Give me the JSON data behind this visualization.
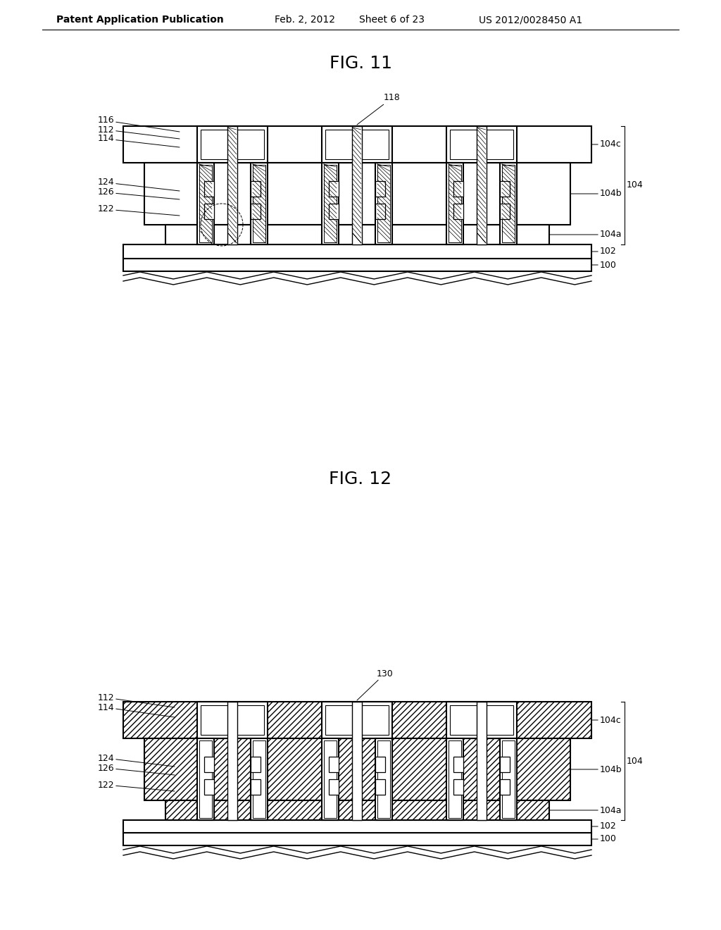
{
  "bg_color": "#ffffff",
  "header_text": "Patent Application Publication",
  "header_date": "Feb. 2, 2012",
  "header_sheet": "Sheet 6 of 23",
  "header_patent": "US 2012/0028450 A1",
  "fig11_title": "FIG. 11",
  "fig12_title": "FIG. 12",
  "lw_border": 1.5,
  "lw_inner": 0.8,
  "lw_thin": 0.7,
  "fontsize_header": 10,
  "fontsize_title": 18,
  "fontsize_label": 9
}
